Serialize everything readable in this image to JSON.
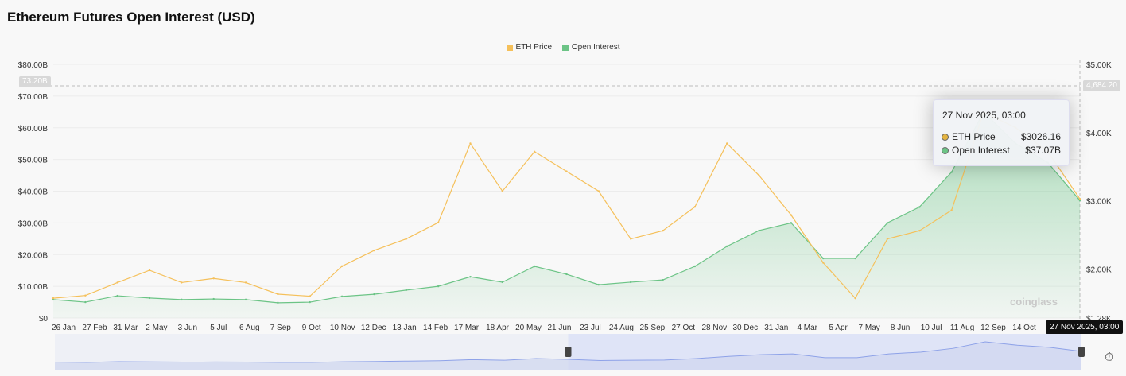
{
  "title": "Ethereum Futures Open Interest (USD)",
  "watermark": "coinglass",
  "chart_data": {
    "type": "line",
    "categories": [
      "26 Jan",
      "27 Feb",
      "31 Mar",
      "2 May",
      "3 Jun",
      "5 Jul",
      "6 Aug",
      "7 Sep",
      "9 Oct",
      "10 Nov",
      "12 Dec",
      "13 Jan",
      "14 Feb",
      "17 Mar",
      "18 Apr",
      "20 May",
      "21 Jun",
      "23 Jul",
      "24 Aug",
      "25 Sep",
      "27 Oct",
      "28 Nov",
      "30 Dec",
      "31 Jan",
      "4 Mar",
      "5 Apr",
      "7 May",
      "8 Jun",
      "10 Jul",
      "11 Aug",
      "12 Sep",
      "14 Oct",
      "27 Nov 2025, 03:00"
    ],
    "series": [
      {
        "name": "ETH Price",
        "axis": "right",
        "color": "#f5c05a",
        "values": [
          1570,
          1610,
          1800,
          1980,
          1800,
          1860,
          1800,
          1630,
          1600,
          2040,
          2270,
          2440,
          2680,
          3840,
          3140,
          3720,
          3430,
          3140,
          2440,
          2560,
          2910,
          3840,
          3370,
          2790,
          2090,
          1570,
          2440,
          2560,
          2860,
          4300,
          4070,
          3720,
          3026.16
        ]
      },
      {
        "name": "Open Interest",
        "axis": "left",
        "color": "#6cc486",
        "values": [
          5.8,
          5.0,
          7.0,
          6.3,
          5.8,
          6.0,
          5.8,
          4.8,
          5.0,
          6.8,
          7.5,
          8.8,
          10,
          13,
          11.3,
          16.3,
          13.8,
          10.5,
          11.3,
          12,
          16.3,
          22.6,
          27.6,
          30,
          18.8,
          18.8,
          30,
          35,
          46,
          65,
          55,
          49,
          37.07
        ]
      }
    ],
    "left_axis": {
      "ticks": [
        "$0",
        "$10.00B",
        "$20.00B",
        "$30.00B",
        "$40.00B",
        "$50.00B",
        "$60.00B",
        "$70.00B",
        "$80.00B"
      ],
      "range": [
        0,
        80
      ]
    },
    "right_axis": {
      "ticks": [
        "$1.28K",
        "$2.00K",
        "$3.00K",
        "$4.00K",
        "$5.00K"
      ],
      "range": [
        1280,
        5000
      ]
    },
    "x_ticks": [
      "26 Jan",
      "27 Feb",
      "31 Mar",
      "2 May",
      "3 Jun",
      "5 Jul",
      "6 Aug",
      "7 Sep",
      "9 Oct",
      "10 Nov",
      "12 Dec",
      "13 Jan",
      "14 Feb",
      "17 Mar",
      "18 Apr",
      "20 May",
      "21 Jun",
      "23 Jul",
      "24 Aug",
      "25 Sep",
      "27 Oct",
      "28 Nov",
      "30 Dec",
      "31 Jan",
      "4 Mar",
      "5 Apr",
      "7 May",
      "8 Jun",
      "10 Jul",
      "11 Aug",
      "12 Sep",
      "14 Oct"
    ],
    "crosshair": {
      "left_label": "73.20B",
      "right_label": "4,684.20",
      "x_label": "27 Nov 2025, 03:00"
    },
    "legend": "top-center",
    "grid": true
  },
  "tooltip": {
    "date": "27 Nov 2025, 03:00",
    "rows": [
      {
        "label": "ETH Price",
        "value": "$3026.16",
        "color": "#e3b341"
      },
      {
        "label": "Open Interest",
        "value": "$37.07B",
        "color": "#6cc486"
      }
    ]
  },
  "navigator": {
    "selection_start_fraction": 0.5
  }
}
